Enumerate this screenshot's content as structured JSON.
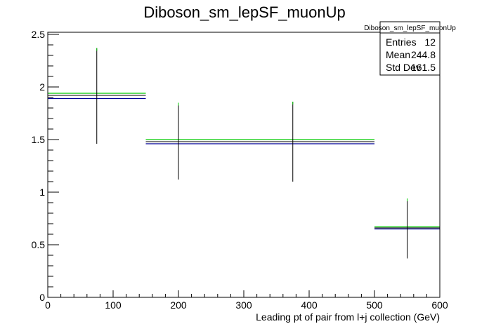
{
  "chart_data": {
    "type": "histogram",
    "title": "Diboson_sm_lepSF_muonUp",
    "xlabel": "Leading pt of pair from l+j collection (GeV)",
    "ylabel": "",
    "xlim": [
      0,
      600
    ],
    "ylim": [
      0,
      2.52
    ],
    "x_ticks": [
      0,
      100,
      200,
      300,
      400,
      500,
      600
    ],
    "x_tick_labels": [
      "0",
      "100",
      "200",
      "300",
      "400",
      "500",
      "600"
    ],
    "y_ticks": [
      0,
      0.5,
      1,
      1.5,
      2,
      2.5
    ],
    "y_tick_labels": [
      "0",
      "0.5",
      "1",
      "1.5",
      "2",
      "2.5"
    ],
    "grid": false,
    "legend": "none",
    "bins": [
      {
        "x_low": 0,
        "x_high": 150,
        "x_center": 75,
        "value": 1.92,
        "error_low": 1.46,
        "error_high": 2.37,
        "value_up": 1.94,
        "value_down": 1.89
      },
      {
        "x_low": 150,
        "x_high": 250,
        "x_center": 200,
        "value": 1.48,
        "error_low": 1.12,
        "error_high": 1.85,
        "value_up": 1.5,
        "value_down": 1.46
      },
      {
        "x_low": 250,
        "x_high": 500,
        "x_center": 375,
        "value": 1.48,
        "error_low": 1.1,
        "error_high": 1.86,
        "value_up": 1.5,
        "value_down": 1.46
      },
      {
        "x_low": 500,
        "x_high": 600,
        "x_center": 550,
        "value": 0.66,
        "error_low": 0.37,
        "error_high": 0.94,
        "value_up": 0.67,
        "value_down": 0.65
      }
    ],
    "colors": {
      "nominal": "#000000",
      "up": "#00cc00",
      "down": "#000099",
      "axis": "#000000"
    },
    "stats_box": {
      "title": "Diboson_sm_lepSF_muonUp",
      "rows": [
        {
          "label": "Entries",
          "value": "12"
        },
        {
          "label": "Mean",
          "value": "244.8"
        },
        {
          "label": "Std Dev",
          "value": "161.5"
        }
      ]
    }
  }
}
